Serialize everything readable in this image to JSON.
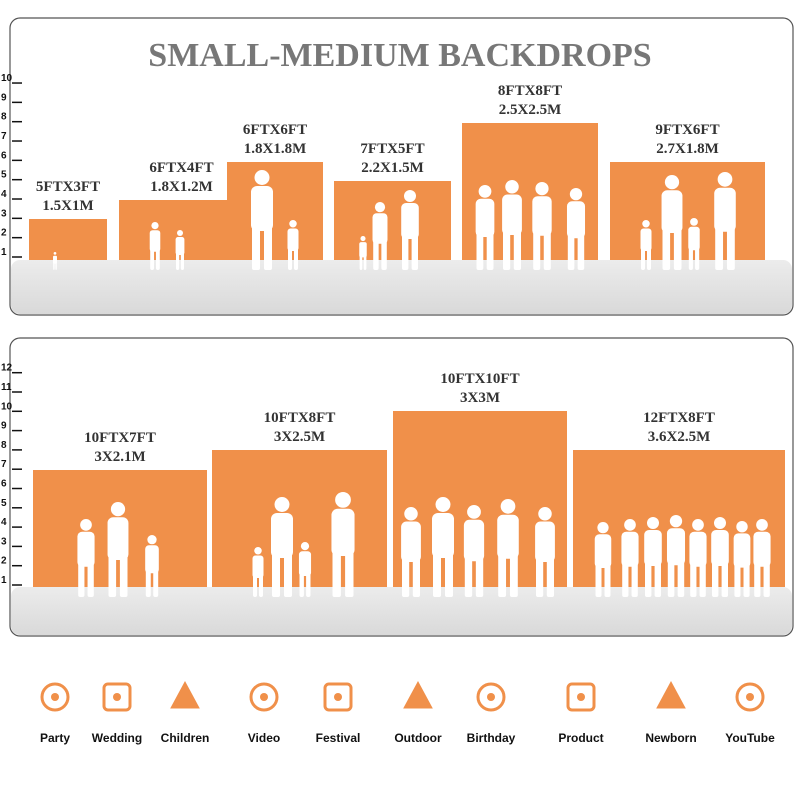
{
  "title": "SMALL-MEDIUM BACKDROPS",
  "panels": [
    {
      "scale": [
        1,
        2,
        3,
        4,
        5,
        6,
        7,
        8,
        9,
        10
      ],
      "backdrops": [
        {
          "feet": "5FTX3FT",
          "meters": "1.5X1M"
        },
        {
          "feet": "6FTX4FT",
          "meters": "1.8X1.2M"
        },
        {
          "feet": "6FTX6FT",
          "meters": "1.8X1.8M"
        },
        {
          "feet": "7FTX5FT",
          "meters": "2.2X1.5M"
        },
        {
          "feet": "8FTX8FT",
          "meters": "2.5X2.5M"
        },
        {
          "feet": "9FTX6FT",
          "meters": "2.7X1.8M"
        }
      ]
    },
    {
      "scale": [
        1,
        2,
        3,
        4,
        5,
        6,
        7,
        8,
        9,
        10,
        11,
        12
      ],
      "backdrops": [
        {
          "feet": "10FTX7FT",
          "meters": "3X2.1M"
        },
        {
          "feet": "10FTX8FT",
          "meters": "3X2.5M"
        },
        {
          "feet": "10FTX10FT",
          "meters": "3X3M"
        },
        {
          "feet": "12FTX8FT",
          "meters": "3.6X2.5M"
        }
      ]
    }
  ],
  "categories": [
    "Party",
    "Wedding",
    "Children",
    "Video",
    "Festival",
    "Outdoor",
    "Birthday",
    "Product",
    "Newborn",
    "YouTube"
  ]
}
